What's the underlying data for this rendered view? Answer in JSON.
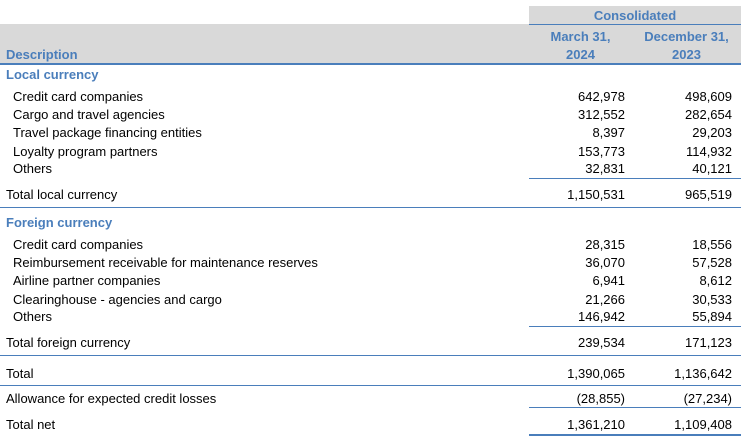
{
  "header": {
    "group_label": "Consolidated",
    "description_label": "Description",
    "col1_line1": "March 31,",
    "col1_line2": "2024",
    "col2_line1": "December 31,",
    "col2_line2": "2023"
  },
  "local": {
    "section_label": "Local currency",
    "rows": [
      {
        "label": "Credit card companies",
        "v1": "642,978",
        "v2": "498,609"
      },
      {
        "label": "Cargo and travel agencies",
        "v1": "312,552",
        "v2": "282,654"
      },
      {
        "label": "Travel package financing entities",
        "v1": "8,397",
        "v2": "29,203"
      },
      {
        "label": "Loyalty program partners",
        "v1": "153,773",
        "v2": "114,932"
      },
      {
        "label": "Others",
        "v1": "32,831",
        "v2": "40,121"
      }
    ],
    "total": {
      "label": "Total local currency",
      "v1": "1,150,531",
      "v2": "965,519"
    }
  },
  "foreign": {
    "section_label": "Foreign currency",
    "rows": [
      {
        "label": "Credit card companies",
        "v1": "28,315",
        "v2": "18,556"
      },
      {
        "label": "Reimbursement receivable for maintenance reserves",
        "v1": "36,070",
        "v2": "57,528"
      },
      {
        "label": "Airline partner companies",
        "v1": "6,941",
        "v2": "8,612"
      },
      {
        "label": "Clearinghouse - agencies and cargo",
        "v1": "21,266",
        "v2": "30,533"
      },
      {
        "label": "Others",
        "v1": "146,942",
        "v2": "55,894"
      }
    ],
    "total": {
      "label": "Total foreign currency",
      "v1": "239,534",
      "v2": "171,123"
    }
  },
  "total": {
    "label": "Total",
    "v1": "1,390,065",
    "v2": "1,136,642"
  },
  "allowance": {
    "label": "Allowance for expected credit losses",
    "v1": "(28,855)",
    "v2": "(27,234)"
  },
  "net": {
    "label": "Total net",
    "v1": "1,361,210",
    "v2": "1,109,408"
  }
}
